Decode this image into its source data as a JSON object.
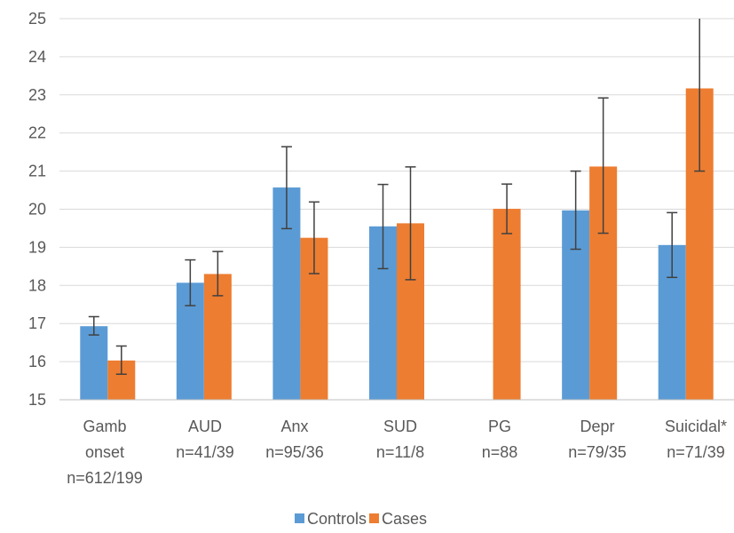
{
  "chart_data": {
    "type": "bar",
    "categories": [
      [
        "Gamb",
        "onset",
        "n=612/199"
      ],
      [
        "AUD",
        "n=41/39"
      ],
      [
        "Anx",
        "n=95/36"
      ],
      [
        "SUD",
        "n=11/8"
      ],
      [
        "PG",
        "n=88"
      ],
      [
        "Depr",
        "n=79/35"
      ],
      [
        "Suicidal*",
        "n=71/39"
      ]
    ],
    "series": [
      {
        "name": "Controls",
        "color": "#5B9BD5",
        "values": [
          16.93,
          18.07,
          20.57,
          19.55,
          null,
          19.97,
          19.06
        ],
        "error_low": [
          16.7,
          17.47,
          19.49,
          18.44,
          null,
          18.95,
          18.21
        ],
        "error_high": [
          17.18,
          18.67,
          21.64,
          20.65,
          null,
          21.0,
          19.91
        ]
      },
      {
        "name": "Cases",
        "color": "#ED7D31",
        "values": [
          16.03,
          18.3,
          19.25,
          19.63,
          20.01,
          21.12,
          23.17
        ],
        "error_low": [
          15.67,
          17.73,
          18.31,
          18.15,
          19.36,
          19.37,
          21.0
        ],
        "error_high": [
          16.41,
          18.89,
          20.19,
          21.11,
          20.66,
          22.92,
          25.0
        ]
      }
    ],
    "ylim": [
      15,
      25
    ],
    "yticks": [
      15,
      16,
      17,
      18,
      19,
      20,
      21,
      22,
      23,
      24,
      25
    ],
    "grid": true,
    "legend": "bottom-center",
    "title": "",
    "xlabel": "",
    "ylabel": ""
  }
}
